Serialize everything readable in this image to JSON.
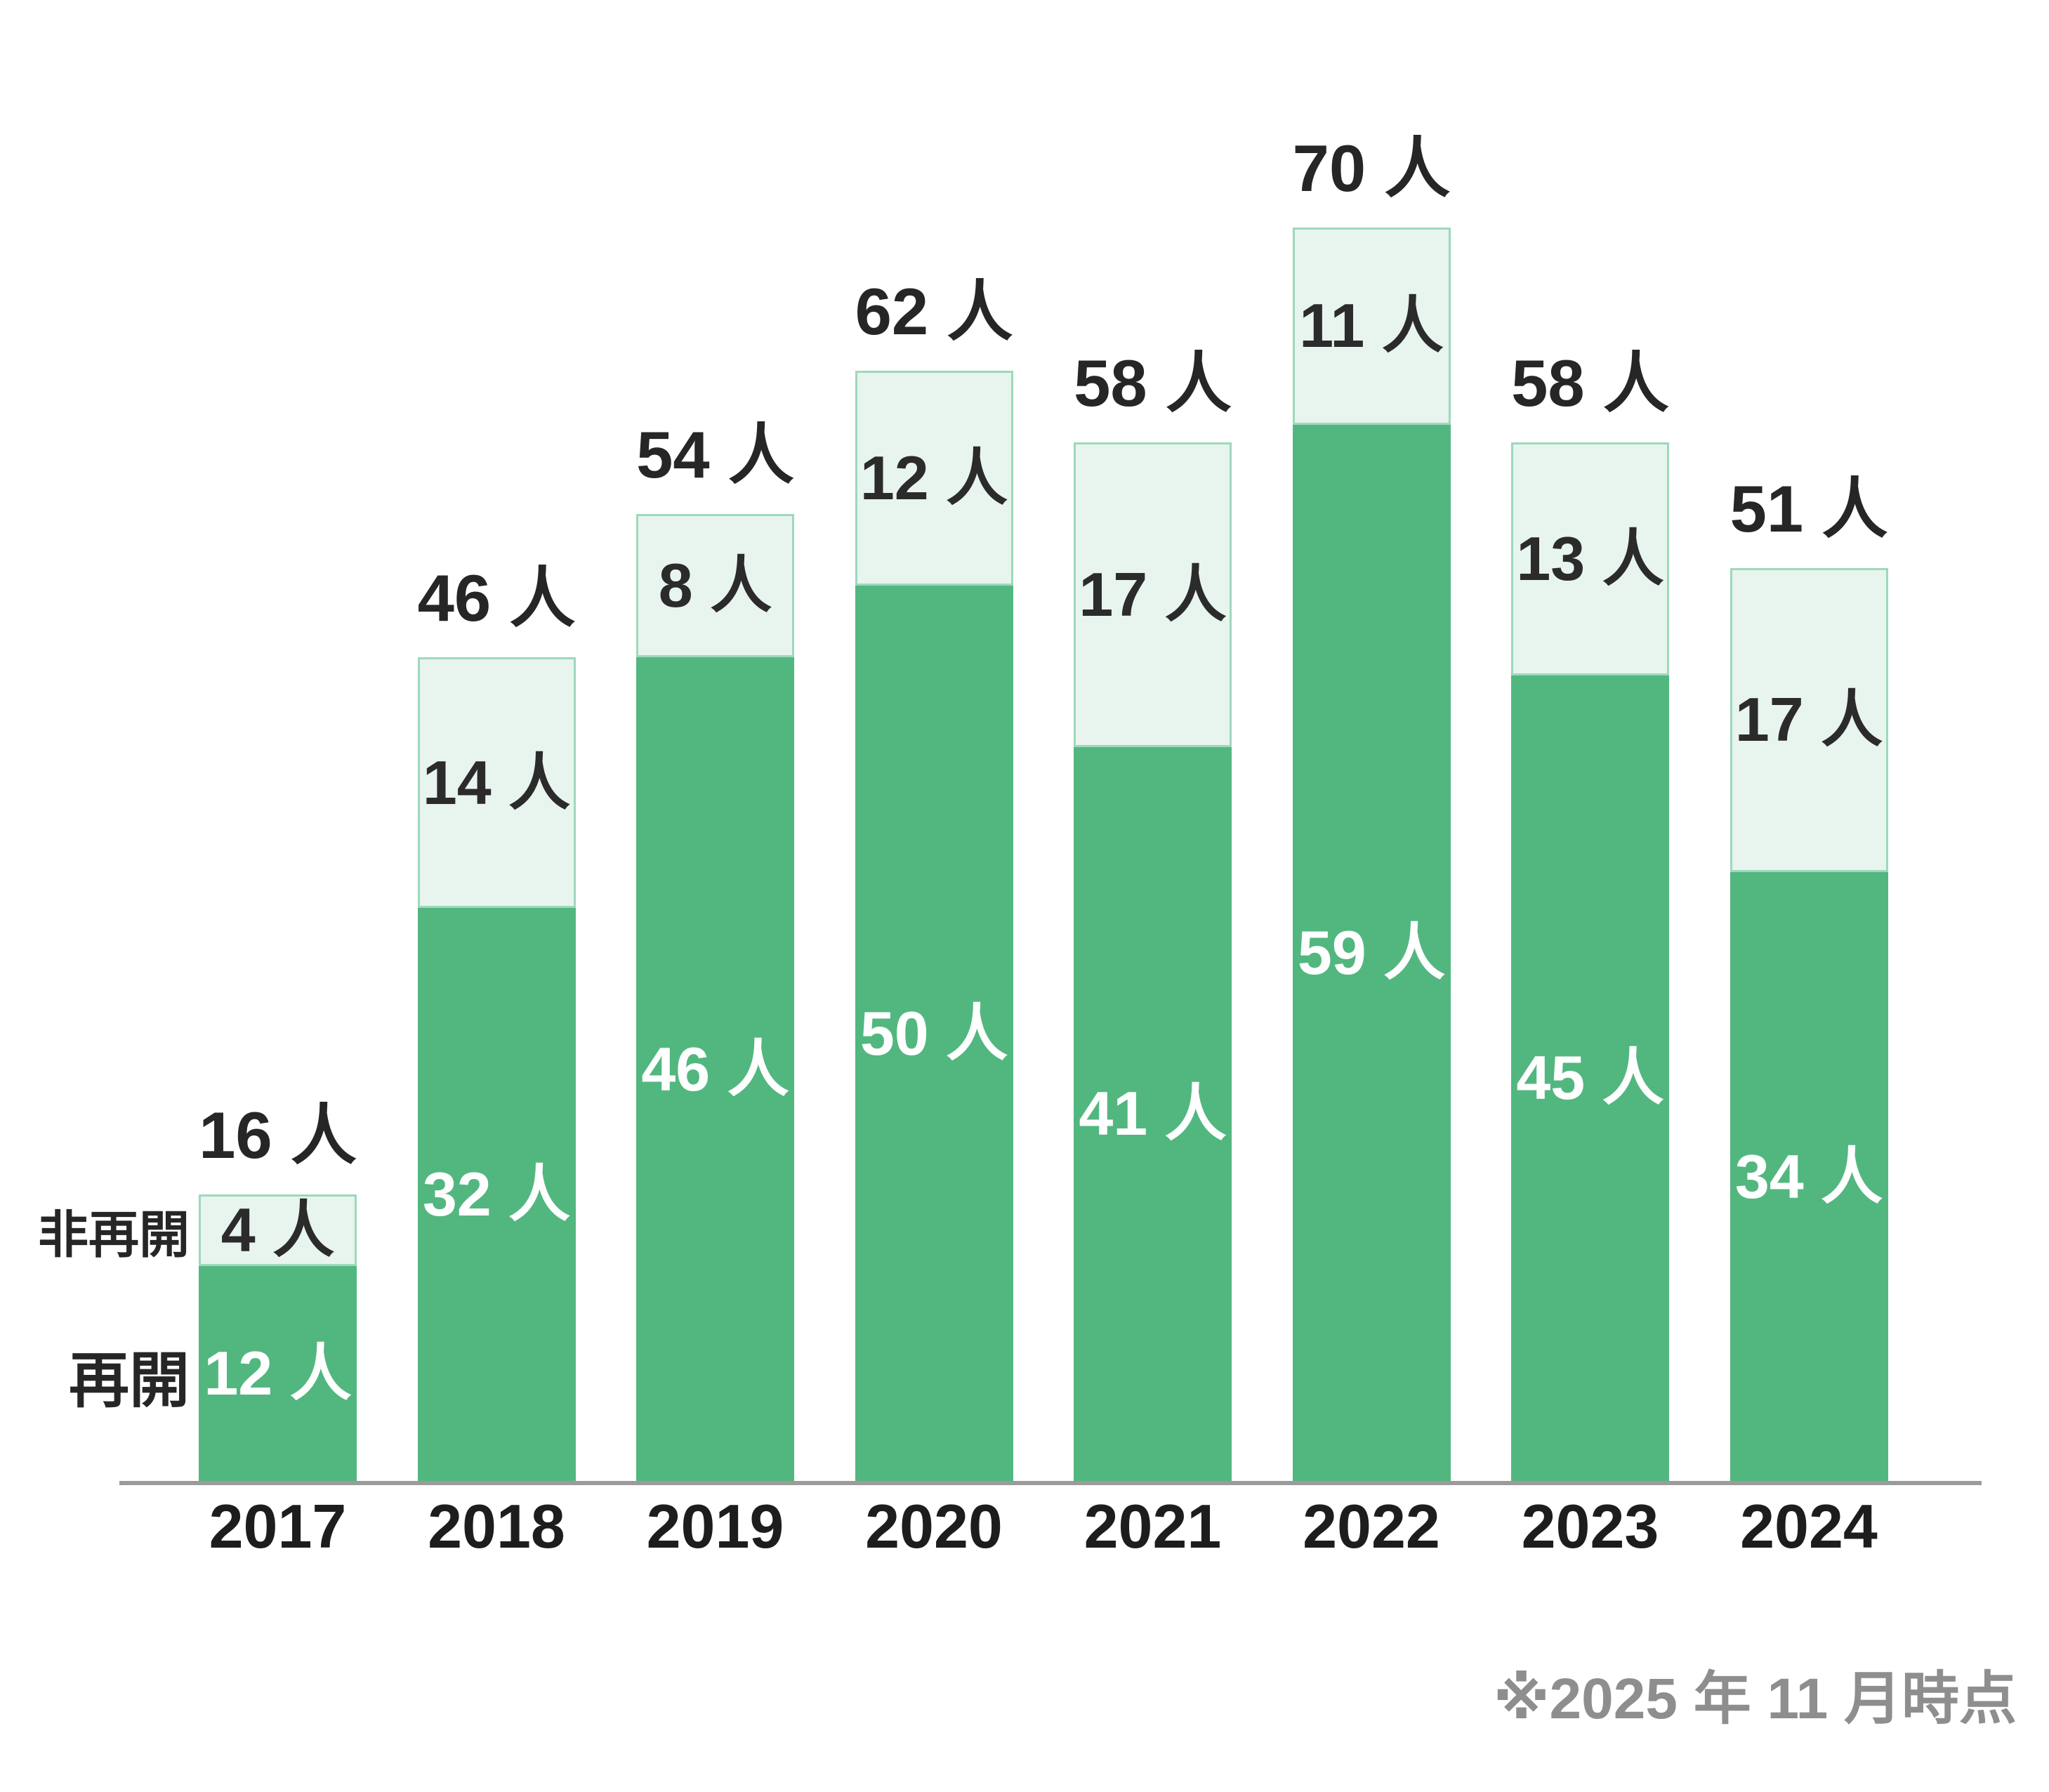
{
  "chart_data": {
    "type": "bar",
    "stacked": true,
    "title": "",
    "categories": [
      "2017",
      "2018",
      "2019",
      "2020",
      "2021",
      "2022",
      "2023",
      "2024"
    ],
    "series": [
      {
        "name": "再開",
        "values": [
          12,
          32,
          46,
          50,
          41,
          59,
          45,
          34
        ],
        "color": "#52B77F",
        "label_color": "#FFFFFF"
      },
      {
        "name": "非再開",
        "values": [
          4,
          14,
          8,
          12,
          17,
          11,
          13,
          17
        ],
        "color": "#E8F4EE",
        "border_color": "#9ED8BB",
        "label_color": "#2B2B2B"
      }
    ],
    "totals": [
      16,
      46,
      54,
      62,
      58,
      70,
      58,
      51
    ],
    "unit": "人",
    "label_separator": " ",
    "footnote": "※2025 年 11 月時点",
    "legend_position": "left",
    "grid": false,
    "axis_color": "#9B9B9B",
    "ylim": [
      0,
      78
    ]
  }
}
